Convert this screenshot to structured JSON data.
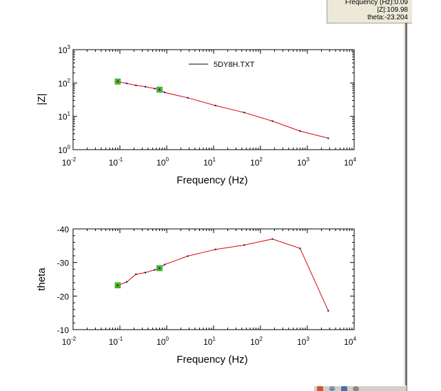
{
  "readout": {
    "frequency": "Frequency (Hz):0.09",
    "z": "|Z|:109.98",
    "theta": "theta:-23.204"
  },
  "colors": {
    "line": "#e00000",
    "point": "#000080",
    "marker_fill": "#33cc33",
    "marker_center": "#c00000",
    "axis": "#000000"
  },
  "taskbar": {
    "ime_text": "英",
    "icons": [
      "ime-icon",
      "keyboard-icon",
      "help-icon"
    ]
  },
  "chart_data": [
    {
      "type": "line",
      "id": "magnitude",
      "xlabel": "Frequency (Hz)",
      "ylabel": "|Z|",
      "xscale": "log",
      "yscale": "log",
      "xlim": [
        0.01,
        10000
      ],
      "ylim": [
        1,
        1000
      ],
      "x_ticks": [
        {
          "base": "10",
          "exp": "-2"
        },
        {
          "base": "10",
          "exp": "-1"
        },
        {
          "base": "10",
          "exp": "0"
        },
        {
          "base": "10",
          "exp": "1"
        },
        {
          "base": "10",
          "exp": "2"
        },
        {
          "base": "10",
          "exp": "3"
        },
        {
          "base": "10",
          "exp": "4"
        }
      ],
      "y_ticks": [
        {
          "base": "10",
          "exp": "0"
        },
        {
          "base": "10",
          "exp": "1"
        },
        {
          "base": "10",
          "exp": "2"
        },
        {
          "base": "10",
          "exp": "3"
        }
      ],
      "legend": {
        "label": "5DY8H.TXT",
        "position": "top-center"
      },
      "series": [
        {
          "name": "5DY8H.TXT",
          "x": [
            0.09,
            0.14,
            0.22,
            0.35,
            0.55,
            0.7,
            0.9,
            2.8,
            11,
            45,
            180,
            700,
            2800
          ],
          "y": [
            110,
            97,
            85,
            77,
            68,
            63,
            52,
            36,
            21,
            13,
            7.2,
            3.6,
            2.2
          ]
        }
      ],
      "markers": [
        {
          "x": 0.09,
          "y": 110
        },
        {
          "x": 0.7,
          "y": 63
        }
      ]
    },
    {
      "type": "line",
      "id": "phase",
      "xlabel": "Frequency (Hz)",
      "ylabel": "theta",
      "xscale": "log",
      "yscale": "linear",
      "inverted_y": true,
      "xlim": [
        0.01,
        10000
      ],
      "ylim": [
        -10,
        -40
      ],
      "x_ticks": [
        {
          "base": "10",
          "exp": "-2"
        },
        {
          "base": "10",
          "exp": "-1"
        },
        {
          "base": "10",
          "exp": "0"
        },
        {
          "base": "10",
          "exp": "1"
        },
        {
          "base": "10",
          "exp": "2"
        },
        {
          "base": "10",
          "exp": "3"
        },
        {
          "base": "10",
          "exp": "4"
        }
      ],
      "y_ticks": [
        {
          "value": -10,
          "label": "-10"
        },
        {
          "value": -20,
          "label": "-20"
        },
        {
          "value": -30,
          "label": "-30"
        },
        {
          "value": -40,
          "label": "-40"
        }
      ],
      "series": [
        {
          "name": "",
          "x": [
            0.09,
            0.14,
            0.22,
            0.35,
            0.55,
            0.7,
            0.9,
            2.8,
            11,
            45,
            180,
            700,
            2800
          ],
          "y": [
            -23.2,
            -24.2,
            -26.5,
            -27.0,
            -27.8,
            -28.3,
            -29.4,
            -31.9,
            -33.9,
            -35.2,
            -37.0,
            -34.2,
            -15.6
          ]
        }
      ],
      "markers": [
        {
          "x": 0.09,
          "y": -23.2
        },
        {
          "x": 0.7,
          "y": -28.3
        }
      ]
    }
  ]
}
